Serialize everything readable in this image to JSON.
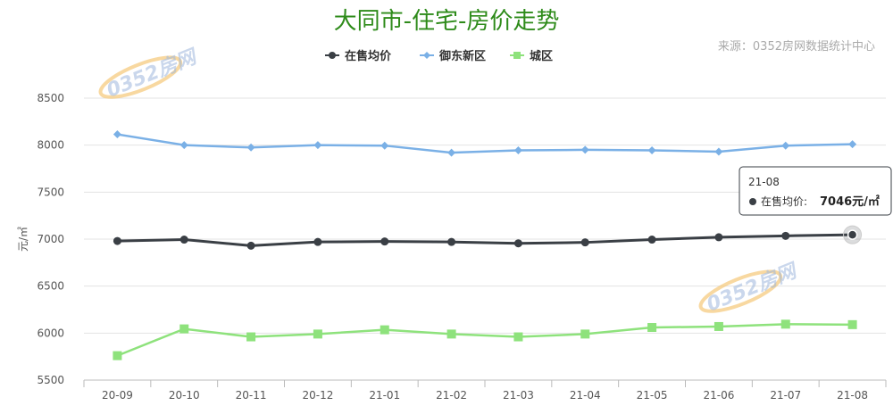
{
  "chart_data": {
    "type": "line",
    "title": "大同市-住宅-房价走势",
    "source": "来源：0352房网数据统计中心",
    "ylabel": "元/㎡",
    "ylim": [
      5500,
      8500
    ],
    "yticks": [
      5500,
      6000,
      6500,
      7000,
      7500,
      8000,
      8500
    ],
    "grid": true,
    "legend_position": "top-center",
    "categories": [
      "20-09",
      "20-10",
      "20-11",
      "20-12",
      "21-01",
      "21-02",
      "21-03",
      "21-04",
      "21-05",
      "21-06",
      "21-07",
      "21-08"
    ],
    "series": [
      {
        "name": "在售均价",
        "color": "#3a3f45",
        "marker": "circle",
        "values": [
          6980,
          6995,
          6930,
          6970,
          6975,
          6970,
          6955,
          6965,
          6995,
          7020,
          7035,
          7046
        ]
      },
      {
        "name": "御东新区",
        "color": "#7ab0e6",
        "marker": "diamond",
        "values": [
          8115,
          8000,
          7975,
          8000,
          7995,
          7920,
          7945,
          7950,
          7945,
          7930,
          7995,
          8010
        ]
      },
      {
        "name": "城区",
        "color": "#8ee27c",
        "marker": "square",
        "values": [
          5760,
          6045,
          5960,
          5990,
          6035,
          5990,
          5960,
          5990,
          6060,
          6070,
          6095,
          6090
        ]
      }
    ],
    "tooltip": {
      "category": "21-08",
      "series_label": "在售均价:",
      "value_text": "7046元/㎡"
    },
    "watermark": "0352房网"
  }
}
